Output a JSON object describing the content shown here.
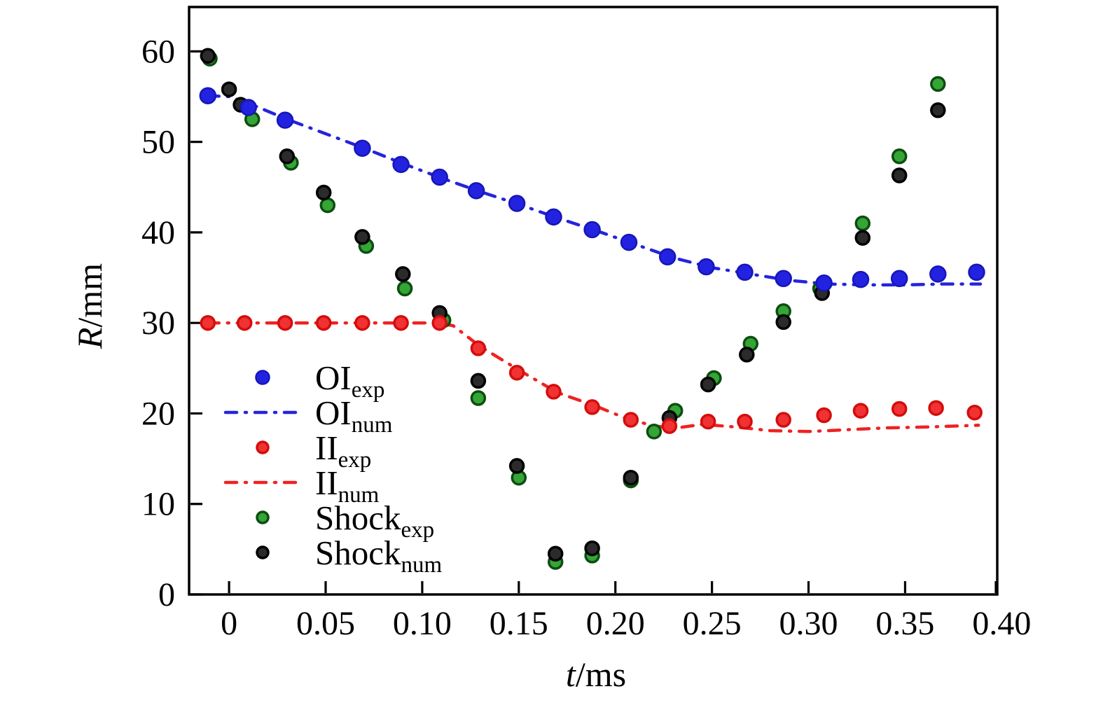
{
  "figure": {
    "background": "#ffffff"
  },
  "chart_data": {
    "type": "scatter",
    "title": "",
    "xlabel_var": "t",
    "xlabel_unit": "/ms",
    "ylabel_var": "R",
    "ylabel_unit": "/mm",
    "xlim": [
      -0.0207,
      0.3977
    ],
    "ylim": [
      0,
      64.9
    ],
    "grid": false,
    "legend_position": "inside-left-middle",
    "xticks": [
      0,
      0.05,
      0.1,
      0.15,
      0.2,
      0.25,
      0.3,
      0.35,
      0.4
    ],
    "xtick_labels": [
      "0",
      "0.05",
      "0.10",
      "0.15",
      "0.20",
      "0.25",
      "0.30",
      "0.35",
      "0.40"
    ],
    "yticks": [
      0,
      10,
      20,
      30,
      40,
      50,
      60
    ],
    "ytick_labels": [
      "0",
      "10",
      "20",
      "30",
      "40",
      "50",
      "60"
    ],
    "axis_color": "#000000",
    "legend_order": [
      "OI_exp",
      "OI_num",
      "II_exp",
      "II_num",
      "Shock_exp",
      "Shock_num"
    ],
    "series": [
      {
        "name": "OI_num",
        "label_main": "OI",
        "label_sub": "num",
        "kind": "line",
        "color": "#2424dd",
        "line_width": 4.5,
        "dash": "16 12 2 12",
        "points": [
          [
            -0.011,
            55.1
          ],
          [
            0.0,
            55.0
          ],
          [
            0.012,
            54.1
          ],
          [
            0.03,
            52.5
          ],
          [
            0.05,
            50.9
          ],
          [
            0.07,
            49.3
          ],
          [
            0.09,
            47.6
          ],
          [
            0.11,
            46.0
          ],
          [
            0.13,
            44.5
          ],
          [
            0.15,
            43.1
          ],
          [
            0.17,
            41.6
          ],
          [
            0.19,
            40.2
          ],
          [
            0.21,
            38.7
          ],
          [
            0.23,
            37.2
          ],
          [
            0.25,
            36.1
          ],
          [
            0.27,
            35.4
          ],
          [
            0.29,
            34.7
          ],
          [
            0.31,
            34.3
          ],
          [
            0.33,
            34.2
          ],
          [
            0.35,
            34.2
          ],
          [
            0.37,
            34.3
          ],
          [
            0.389,
            34.3
          ]
        ]
      },
      {
        "name": "II_num",
        "label_main": "II",
        "label_sub": "num",
        "kind": "line",
        "color": "#ee2222",
        "line_width": 4.5,
        "dash": "16 12 2 12",
        "points": [
          [
            -0.011,
            30.0
          ],
          [
            0.108,
            30.0
          ],
          [
            0.116,
            29.7
          ],
          [
            0.13,
            27.4
          ],
          [
            0.15,
            24.8
          ],
          [
            0.17,
            22.3
          ],
          [
            0.19,
            20.8
          ],
          [
            0.205,
            19.5
          ],
          [
            0.22,
            18.6
          ],
          [
            0.232,
            18.4
          ],
          [
            0.245,
            18.8
          ],
          [
            0.262,
            18.5
          ],
          [
            0.28,
            18.1
          ],
          [
            0.3,
            18.0
          ],
          [
            0.32,
            18.2
          ],
          [
            0.34,
            18.4
          ],
          [
            0.362,
            18.5
          ],
          [
            0.388,
            18.7
          ]
        ]
      },
      {
        "name": "Shock_exp",
        "label_main": "Shock",
        "label_sub": "exp",
        "kind": "scatter",
        "fill": "#35a535",
        "stroke": "#0d4d12",
        "size": 9.5,
        "stroke_width": 3.5,
        "points": [
          [
            -0.01,
            59.2
          ],
          [
            0.012,
            52.5
          ],
          [
            0.032,
            47.7
          ],
          [
            0.051,
            43.0
          ],
          [
            0.071,
            38.5
          ],
          [
            0.091,
            33.8
          ],
          [
            0.111,
            30.3
          ],
          [
            0.129,
            21.7
          ],
          [
            0.15,
            12.9
          ],
          [
            0.169,
            3.6
          ],
          [
            0.188,
            4.3
          ],
          [
            0.208,
            12.6
          ],
          [
            0.22,
            18.0
          ],
          [
            0.231,
            20.3
          ],
          [
            0.251,
            23.9
          ],
          [
            0.27,
            27.7
          ],
          [
            0.287,
            31.3
          ],
          [
            0.306,
            33.8
          ],
          [
            0.328,
            41.0
          ],
          [
            0.347,
            48.4
          ],
          [
            0.367,
            56.4
          ]
        ]
      },
      {
        "name": "Shock_num",
        "label_main": "Shock",
        "label_sub": "num",
        "kind": "scatter",
        "fill": "#2b2b2b",
        "stroke": "#000000",
        "size": 9.5,
        "stroke_width": 3.5,
        "points": [
          [
            -0.011,
            59.5
          ],
          [
            0.0,
            55.8
          ],
          [
            0.006,
            54.1
          ],
          [
            0.03,
            48.4
          ],
          [
            0.049,
            44.4
          ],
          [
            0.069,
            39.5
          ],
          [
            0.09,
            35.4
          ],
          [
            0.109,
            31.1
          ],
          [
            0.129,
            23.6
          ],
          [
            0.149,
            14.2
          ],
          [
            0.169,
            4.5
          ],
          [
            0.188,
            5.1
          ],
          [
            0.208,
            12.9
          ],
          [
            0.228,
            19.5
          ],
          [
            0.248,
            23.2
          ],
          [
            0.268,
            26.5
          ],
          [
            0.287,
            30.1
          ],
          [
            0.307,
            33.3
          ],
          [
            0.328,
            39.4
          ],
          [
            0.347,
            46.3
          ],
          [
            0.367,
            53.5
          ]
        ]
      },
      {
        "name": "II_exp",
        "label_main": "II",
        "label_sub": "exp",
        "kind": "scatter",
        "fill": "#f13232",
        "stroke": "#d40d0d",
        "size": 9.5,
        "stroke_width": 3.5,
        "points": [
          [
            -0.011,
            30.0
          ],
          [
            0.008,
            30.0
          ],
          [
            0.029,
            30.0
          ],
          [
            0.049,
            30.0
          ],
          [
            0.069,
            30.0
          ],
          [
            0.089,
            30.0
          ],
          [
            0.109,
            30.0
          ],
          [
            0.129,
            27.2
          ],
          [
            0.149,
            24.5
          ],
          [
            0.168,
            22.4
          ],
          [
            0.188,
            20.7
          ],
          [
            0.208,
            19.3
          ],
          [
            0.228,
            18.6
          ],
          [
            0.248,
            19.1
          ],
          [
            0.267,
            19.1
          ],
          [
            0.287,
            19.3
          ],
          [
            0.308,
            19.8
          ],
          [
            0.327,
            20.3
          ],
          [
            0.347,
            20.5
          ],
          [
            0.366,
            20.6
          ],
          [
            0.386,
            20.1
          ]
        ]
      },
      {
        "name": "OI_exp",
        "label_main": "OI",
        "label_sub": "exp",
        "kind": "scatter",
        "fill": "#2222e0",
        "stroke": "#1616b8",
        "size": 11,
        "stroke_width": 2.5,
        "points": [
          [
            -0.011,
            55.1
          ],
          [
            0.01,
            53.8
          ],
          [
            0.029,
            52.4
          ],
          [
            0.069,
            49.3
          ],
          [
            0.089,
            47.5
          ],
          [
            0.109,
            46.1
          ],
          [
            0.128,
            44.6
          ],
          [
            0.149,
            43.2
          ],
          [
            0.168,
            41.7
          ],
          [
            0.188,
            40.3
          ],
          [
            0.207,
            38.9
          ],
          [
            0.227,
            37.3
          ],
          [
            0.247,
            36.2
          ],
          [
            0.267,
            35.6
          ],
          [
            0.287,
            34.9
          ],
          [
            0.308,
            34.4
          ],
          [
            0.327,
            34.8
          ],
          [
            0.347,
            34.9
          ],
          [
            0.367,
            35.4
          ],
          [
            0.387,
            35.6
          ]
        ]
      }
    ]
  }
}
